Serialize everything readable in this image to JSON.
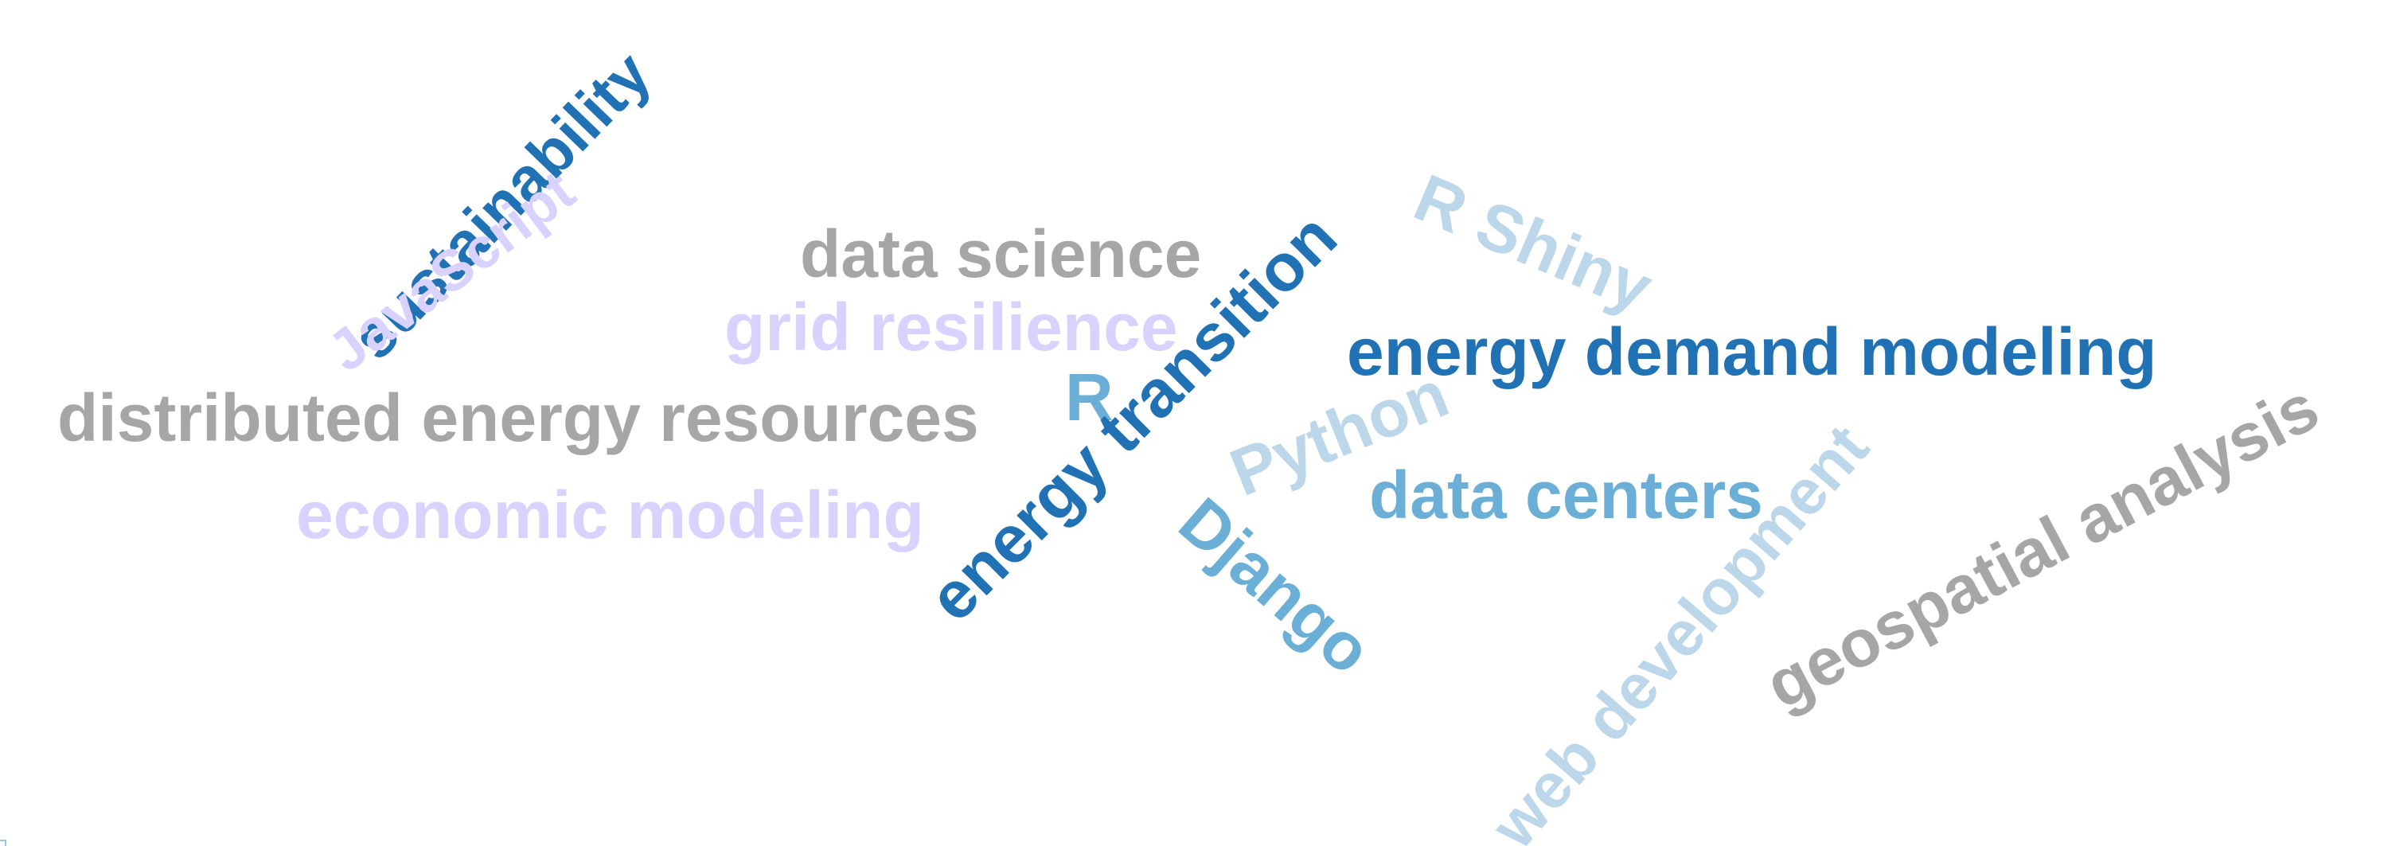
{
  "words": [
    {
      "key": "sustainability",
      "text": "sustainability",
      "color": "#2171b5"
    },
    {
      "key": "javascript",
      "text": "JavaScript",
      "color": "#d9d2ff"
    },
    {
      "key": "data-science",
      "text": "data science",
      "color": "#a6a6a6"
    },
    {
      "key": "grid-resilience",
      "text": "grid resilience",
      "color": "#d9d2ff"
    },
    {
      "key": "distributed-energy-resources",
      "text": "distributed energy resources",
      "color": "#a6a6a6"
    },
    {
      "key": "economic-modeling",
      "text": "economic modeling",
      "color": "#d9d2ff"
    },
    {
      "key": "r",
      "text": "R",
      "color": "#6baed6"
    },
    {
      "key": "energy-transition",
      "text": "energy transition",
      "color": "#2171b5"
    },
    {
      "key": "r-shiny",
      "text": "R Shiny",
      "color": "#bcd7ea"
    },
    {
      "key": "energy-demand-modeling",
      "text": "energy demand modeling",
      "color": "#2171b5"
    },
    {
      "key": "python",
      "text": "Python",
      "color": "#bcd7ea"
    },
    {
      "key": "data-centers",
      "text": "data centers",
      "color": "#6baed6"
    },
    {
      "key": "django",
      "text": "Django",
      "color": "#6baed6"
    },
    {
      "key": "web-development",
      "text": "web development",
      "color": "#bcd7ea"
    },
    {
      "key": "geospatial-analysis",
      "text": "geospatial analysis",
      "color": "#a6a6a6"
    }
  ]
}
